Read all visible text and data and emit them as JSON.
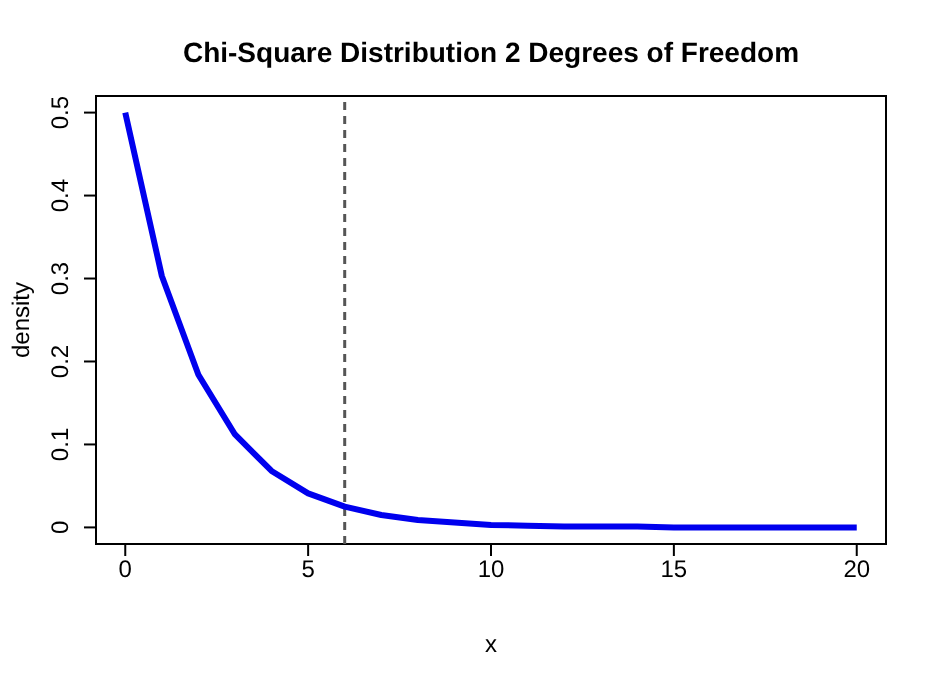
{
  "chart_data": {
    "type": "line",
    "title": "Chi-Square Distribution 2 Degrees of Freedom",
    "xlabel": "x",
    "ylabel": "density",
    "x": [
      0,
      1,
      2,
      3,
      4,
      5,
      6,
      7,
      8,
      9,
      10,
      11,
      12,
      13,
      14,
      15,
      16,
      17,
      18,
      19,
      20
    ],
    "series": [
      {
        "color": "#0000ee",
        "values": [
          0.5,
          0.303,
          0.184,
          0.112,
          0.068,
          0.041,
          0.025,
          0.015,
          0.009,
          0.006,
          0.003,
          0.002,
          0.001,
          0.001,
          0.001,
          0,
          0,
          0,
          0,
          0,
          0
        ]
      }
    ],
    "xlim": [
      -0.8,
      20.8
    ],
    "ylim": [
      -0.02,
      0.52
    ],
    "xticks": [
      0,
      5,
      10,
      15,
      20
    ],
    "yticks": [
      0,
      0.1,
      0.2,
      0.3,
      0.4,
      0.5
    ],
    "ref_lines": [
      {
        "axis": "x",
        "value": 6,
        "color": "#555555",
        "line_style": "dashed"
      }
    ],
    "grid": false,
    "legend": false,
    "marker": "none",
    "line_style": "solid"
  }
}
